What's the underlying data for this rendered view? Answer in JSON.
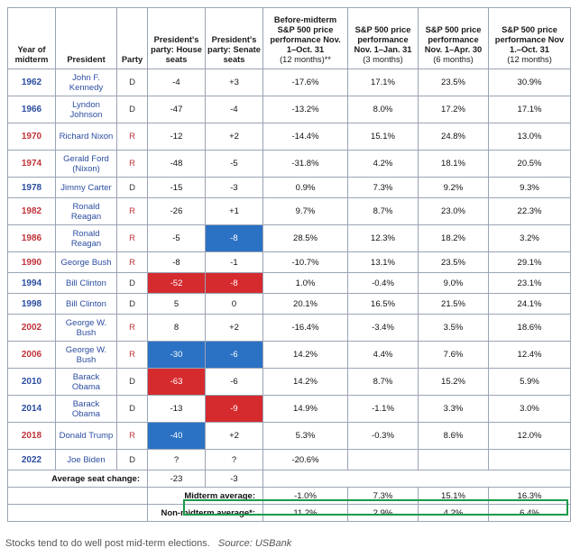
{
  "table": {
    "headers": [
      {
        "main": "Year of midterm",
        "sub": ""
      },
      {
        "main": "President",
        "sub": ""
      },
      {
        "main": "Party",
        "sub": ""
      },
      {
        "main": "President's party: House seats",
        "sub": ""
      },
      {
        "main": "President's party: Senate seats",
        "sub": ""
      },
      {
        "main": "Before-midterm S&P 500 price performance Nov. 1–Oct. 31",
        "sub": "(12 months)**"
      },
      {
        "main": "S&P 500 price performance Nov. 1–Jan. 31",
        "sub": "(3 months)"
      },
      {
        "main": "S&P 500 price performance Nov. 1–Apr. 30",
        "sub": "(6 months)"
      },
      {
        "main": "S&P 500 price performance Nov 1.–Oct. 31",
        "sub": "(12 months)"
      }
    ],
    "rows": [
      {
        "year": "1962",
        "president": "John F. Kennedy",
        "party": "D",
        "house": "-4",
        "senate": "+3",
        "before": "-17.6%",
        "m3": "17.1%",
        "m6": "23.5%",
        "m12": "30.9%",
        "tall": true,
        "house_hl": "",
        "senate_hl": ""
      },
      {
        "year": "1966",
        "president": "Lyndon Johnson",
        "party": "D",
        "house": "-47",
        "senate": "-4",
        "before": "-13.2%",
        "m3": "8.0%",
        "m6": "17.2%",
        "m12": "17.1%",
        "tall": true,
        "house_hl": "",
        "senate_hl": ""
      },
      {
        "year": "1970",
        "president": "Richard Nixon",
        "party": "R",
        "house": "-12",
        "senate": "+2",
        "before": "-14.4%",
        "m3": "15.1%",
        "m6": "24.8%",
        "m12": "13.0%",
        "tall": true,
        "house_hl": "",
        "senate_hl": ""
      },
      {
        "year": "1974",
        "president": "Gerald Ford (Nixon)",
        "party": "R",
        "house": "-48",
        "senate": "-5",
        "before": "-31.8%",
        "m3": "4.2%",
        "m6": "18.1%",
        "m12": "20.5%",
        "tall": true,
        "house_hl": "",
        "senate_hl": ""
      },
      {
        "year": "1978",
        "president": "Jimmy Carter",
        "party": "D",
        "house": "-15",
        "senate": "-3",
        "before": "0.9%",
        "m3": "7.3%",
        "m6": "9.2%",
        "m12": "9.3%",
        "tall": false,
        "house_hl": "",
        "senate_hl": ""
      },
      {
        "year": "1982",
        "president": "Ronald Reagan",
        "party": "R",
        "house": "-26",
        "senate": "+1",
        "before": "9.7%",
        "m3": "8.7%",
        "m6": "23.0%",
        "m12": "22.3%",
        "tall": true,
        "house_hl": "",
        "senate_hl": ""
      },
      {
        "year": "1986",
        "president": "Ronald Reagan",
        "party": "R",
        "house": "-5",
        "senate": "-8",
        "before": "28.5%",
        "m3": "12.3%",
        "m6": "18.2%",
        "m12": "3.2%",
        "tall": true,
        "house_hl": "",
        "senate_hl": "blue"
      },
      {
        "year": "1990",
        "president": "George Bush",
        "party": "R",
        "house": "-8",
        "senate": "-1",
        "before": "-10.7%",
        "m3": "13.1%",
        "m6": "23.5%",
        "m12": "29.1%",
        "tall": false,
        "house_hl": "",
        "senate_hl": ""
      },
      {
        "year": "1994",
        "president": "Bill Clinton",
        "party": "D",
        "house": "-52",
        "senate": "-8",
        "before": "1.0%",
        "m3": "-0.4%",
        "m6": "9.0%",
        "m12": "23.1%",
        "tall": false,
        "house_hl": "red",
        "senate_hl": "red"
      },
      {
        "year": "1998",
        "president": "Bill Clinton",
        "party": "D",
        "house": "5",
        "senate": "0",
        "before": "20.1%",
        "m3": "16.5%",
        "m6": "21.5%",
        "m12": "24.1%",
        "tall": false,
        "house_hl": "",
        "senate_hl": ""
      },
      {
        "year": "2002",
        "president": "George W. Bush",
        "party": "R",
        "house": "8",
        "senate": "+2",
        "before": "-16.4%",
        "m3": "-3.4%",
        "m6": "3.5%",
        "m12": "18.6%",
        "tall": true,
        "house_hl": "",
        "senate_hl": ""
      },
      {
        "year": "2006",
        "president": "George W. Bush",
        "party": "R",
        "house": "-30",
        "senate": "-6",
        "before": "14.2%",
        "m3": "4.4%",
        "m6": "7.6%",
        "m12": "12.4%",
        "tall": true,
        "house_hl": "blue",
        "senate_hl": "blue"
      },
      {
        "year": "2010",
        "president": "Barack Obama",
        "party": "D",
        "house": "-63",
        "senate": "-6",
        "before": "14.2%",
        "m3": "8.7%",
        "m6": "15.2%",
        "m12": "5.9%",
        "tall": true,
        "house_hl": "red",
        "senate_hl": ""
      },
      {
        "year": "2014",
        "president": "Barack Obama",
        "party": "D",
        "house": "-13",
        "senate": "-9",
        "before": "14.9%",
        "m3": "-1.1%",
        "m6": "3.3%",
        "m12": "3.0%",
        "tall": true,
        "house_hl": "",
        "senate_hl": "red"
      },
      {
        "year": "2018",
        "president": "Donald Trump",
        "party": "R",
        "house": "-40",
        "senate": "+2",
        "before": "5.3%",
        "m3": "-0.3%",
        "m6": "8.6%",
        "m12": "12.0%",
        "tall": true,
        "house_hl": "blue",
        "senate_hl": ""
      },
      {
        "year": "2022",
        "president": "Joe Biden",
        "party": "D",
        "house": "?",
        "senate": "?",
        "before": "-20.6%",
        "m3": "",
        "m6": "",
        "m12": "",
        "tall": false,
        "house_hl": "",
        "senate_hl": ""
      }
    ],
    "average_seat_change": {
      "label": "Average seat change:",
      "house": "-23",
      "senate": "-3"
    },
    "midterm_average": {
      "label": "Midterm average:",
      "before": "-1.0%",
      "m3": "7.3%",
      "m6": "15.1%",
      "m12": "16.3%"
    },
    "non_midterm_average": {
      "label": "Non-midterm average*:",
      "before": "11.2%",
      "m3": "2.9%",
      "m6": "4.2%",
      "m12": "6.4%"
    }
  },
  "caption": {
    "text": "Stocks tend to do well post mid-term elections.",
    "source": "Source: USBank"
  },
  "colors": {
    "democrat": "#2b4da0",
    "republican": "#c0333a",
    "highlight_red": "#d52b2f",
    "highlight_blue": "#2b72c4",
    "midterm_box": "#1a9a4a"
  }
}
